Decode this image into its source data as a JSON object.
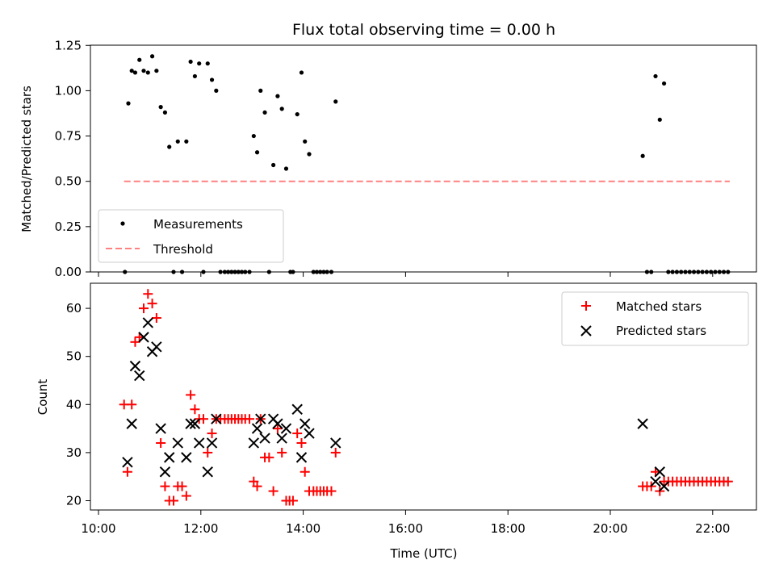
{
  "chart_data": [
    {
      "type": "scatter",
      "title": "Flux total observing time = 0.00 h",
      "xlabel": "",
      "ylabel": "Matched/Predicted stars",
      "xlim": [
        "10:00",
        "23:00"
      ],
      "ylim": [
        0,
        1.25
      ],
      "yticks": [
        "0.00",
        "0.25",
        "0.50",
        "0.75",
        "1.00",
        "1.25"
      ],
      "legend_position": "lower-left",
      "series": [
        {
          "name": "Measurements",
          "color": "#000000",
          "marker": "dot",
          "points": [
            [
              "10:31",
              0.0
            ],
            [
              "10:35",
              0.93
            ],
            [
              "10:39",
              1.11
            ],
            [
              "10:43",
              1.1
            ],
            [
              "10:48",
              1.17
            ],
            [
              "10:53",
              1.11
            ],
            [
              "10:58",
              1.1
            ],
            [
              "11:03",
              1.19
            ],
            [
              "11:08",
              1.11
            ],
            [
              "11:13",
              0.91
            ],
            [
              "11:18",
              0.88
            ],
            [
              "11:23",
              0.69
            ],
            [
              "11:28",
              0.0
            ],
            [
              "11:33",
              0.72
            ],
            [
              "11:38",
              0.0
            ],
            [
              "11:43",
              0.72
            ],
            [
              "11:48",
              1.16
            ],
            [
              "11:53",
              1.08
            ],
            [
              "11:58",
              1.15
            ],
            [
              "12:03",
              0.0
            ],
            [
              "12:08",
              1.15
            ],
            [
              "12:13",
              1.06
            ],
            [
              "12:18",
              1.0
            ],
            [
              "12:23",
              0.0
            ],
            [
              "12:28",
              0.0
            ],
            [
              "12:32",
              0.0
            ],
            [
              "12:36",
              0.0
            ],
            [
              "12:40",
              0.0
            ],
            [
              "12:44",
              0.0
            ],
            [
              "12:48",
              0.0
            ],
            [
              "12:52",
              0.0
            ],
            [
              "12:57",
              0.0
            ],
            [
              "13:02",
              0.75
            ],
            [
              "13:06",
              0.66
            ],
            [
              "13:10",
              1.0
            ],
            [
              "13:15",
              0.88
            ],
            [
              "13:20",
              0.0
            ],
            [
              "13:25",
              0.59
            ],
            [
              "13:30",
              0.97
            ],
            [
              "13:35",
              0.9
            ],
            [
              "13:40",
              0.57
            ],
            [
              "13:45",
              0.0
            ],
            [
              "13:48",
              0.0
            ],
            [
              "13:53",
              0.87
            ],
            [
              "13:58",
              1.1
            ],
            [
              "14:02",
              0.72
            ],
            [
              "14:07",
              0.65
            ],
            [
              "14:12",
              0.0
            ],
            [
              "14:16",
              0.0
            ],
            [
              "14:20",
              0.0
            ],
            [
              "14:24",
              0.0
            ],
            [
              "14:28",
              0.0
            ],
            [
              "14:33",
              0.0
            ],
            [
              "14:38",
              0.94
            ],
            [
              "20:38",
              0.64
            ],
            [
              "20:43",
              0.0
            ],
            [
              "20:48",
              0.0
            ],
            [
              "20:53",
              1.08
            ],
            [
              "20:58",
              0.84
            ],
            [
              "21:03",
              1.04
            ],
            [
              "21:08",
              0.0
            ],
            [
              "21:13",
              0.0
            ],
            [
              "21:18",
              0.0
            ],
            [
              "21:23",
              0.0
            ],
            [
              "21:28",
              0.0
            ],
            [
              "21:33",
              0.0
            ],
            [
              "21:38",
              0.0
            ],
            [
              "21:43",
              0.0
            ],
            [
              "21:48",
              0.0
            ],
            [
              "21:53",
              0.0
            ],
            [
              "21:58",
              0.0
            ],
            [
              "22:03",
              0.0
            ],
            [
              "22:08",
              0.0
            ],
            [
              "22:13",
              0.0
            ],
            [
              "22:18",
              0.0
            ]
          ]
        },
        {
          "name": "Threshold",
          "color": "#ff8080",
          "line": "dashed",
          "points": [
            [
              "10:30",
              0.5
            ],
            [
              "22:20",
              0.5
            ]
          ]
        }
      ]
    },
    {
      "type": "scatter",
      "title": "",
      "xlabel": "Time (UTC)",
      "ylabel": "Count",
      "xlim": [
        "10:00",
        "23:00"
      ],
      "ylim": [
        18,
        65
      ],
      "xticks": [
        "10:00",
        "12:00",
        "14:00",
        "16:00",
        "18:00",
        "20:00",
        "22:00"
      ],
      "yticks": [
        "20",
        "30",
        "40",
        "50",
        "60"
      ],
      "legend_position": "upper-right",
      "series": [
        {
          "name": "Matched stars",
          "color": "#ff0000",
          "marker": "plus",
          "points": [
            [
              "10:30",
              40
            ],
            [
              "10:34",
              26
            ],
            [
              "10:39",
              40
            ],
            [
              "10:43",
              53
            ],
            [
              "10:48",
              54
            ],
            [
              "10:53",
              60
            ],
            [
              "10:58",
              63
            ],
            [
              "11:03",
              61
            ],
            [
              "11:08",
              58
            ],
            [
              "11:13",
              32
            ],
            [
              "11:18",
              23
            ],
            [
              "11:23",
              20
            ],
            [
              "11:28",
              20
            ],
            [
              "11:33",
              23
            ],
            [
              "11:38",
              23
            ],
            [
              "11:43",
              21
            ],
            [
              "11:48",
              42
            ],
            [
              "11:53",
              39
            ],
            [
              "11:58",
              37
            ],
            [
              "12:03",
              37
            ],
            [
              "12:08",
              30
            ],
            [
              "12:13",
              34
            ],
            [
              "12:18",
              37
            ],
            [
              "12:23",
              37
            ],
            [
              "12:28",
              37
            ],
            [
              "12:32",
              37
            ],
            [
              "12:36",
              37
            ],
            [
              "12:40",
              37
            ],
            [
              "12:44",
              37
            ],
            [
              "12:48",
              37
            ],
            [
              "12:52",
              37
            ],
            [
              "12:57",
              37
            ],
            [
              "13:02",
              24
            ],
            [
              "13:06",
              23
            ],
            [
              "13:10",
              37
            ],
            [
              "13:15",
              29
            ],
            [
              "13:20",
              29
            ],
            [
              "13:25",
              22
            ],
            [
              "13:30",
              35
            ],
            [
              "13:35",
              30
            ],
            [
              "13:40",
              20
            ],
            [
              "13:44",
              20
            ],
            [
              "13:48",
              20
            ],
            [
              "13:53",
              34
            ],
            [
              "13:58",
              32
            ],
            [
              "14:02",
              26
            ],
            [
              "14:07",
              22
            ],
            [
              "14:12",
              22
            ],
            [
              "14:16",
              22
            ],
            [
              "14:20",
              22
            ],
            [
              "14:24",
              22
            ],
            [
              "14:28",
              22
            ],
            [
              "14:33",
              22
            ],
            [
              "14:38",
              30
            ],
            [
              "20:38",
              23
            ],
            [
              "20:43",
              23
            ],
            [
              "20:48",
              23
            ],
            [
              "20:53",
              26
            ],
            [
              "20:58",
              22
            ],
            [
              "21:03",
              24
            ],
            [
              "21:08",
              24
            ],
            [
              "21:13",
              24
            ],
            [
              "21:18",
              24
            ],
            [
              "21:23",
              24
            ],
            [
              "21:28",
              24
            ],
            [
              "21:33",
              24
            ],
            [
              "21:38",
              24
            ],
            [
              "21:43",
              24
            ],
            [
              "21:48",
              24
            ],
            [
              "21:53",
              24
            ],
            [
              "21:58",
              24
            ],
            [
              "22:03",
              24
            ],
            [
              "22:08",
              24
            ],
            [
              "22:13",
              24
            ],
            [
              "22:18",
              24
            ]
          ]
        },
        {
          "name": "Predicted stars",
          "color": "#000000",
          "marker": "x",
          "points": [
            [
              "10:34",
              28
            ],
            [
              "10:39",
              36
            ],
            [
              "10:43",
              48
            ],
            [
              "10:48",
              46
            ],
            [
              "10:53",
              54
            ],
            [
              "10:58",
              57
            ],
            [
              "11:03",
              51
            ],
            [
              "11:08",
              52
            ],
            [
              "11:13",
              35
            ],
            [
              "11:18",
              26
            ],
            [
              "11:23",
              29
            ],
            [
              "11:33",
              32
            ],
            [
              "11:43",
              29
            ],
            [
              "11:48",
              36
            ],
            [
              "11:53",
              36
            ],
            [
              "11:58",
              32
            ],
            [
              "12:08",
              26
            ],
            [
              "12:13",
              32
            ],
            [
              "12:18",
              37
            ],
            [
              "13:02",
              32
            ],
            [
              "13:06",
              35
            ],
            [
              "13:10",
              37
            ],
            [
              "13:15",
              33
            ],
            [
              "13:25",
              37
            ],
            [
              "13:30",
              36
            ],
            [
              "13:35",
              33
            ],
            [
              "13:40",
              35
            ],
            [
              "13:53",
              39
            ],
            [
              "13:58",
              29
            ],
            [
              "14:02",
              36
            ],
            [
              "14:07",
              34
            ],
            [
              "14:38",
              32
            ],
            [
              "20:38",
              36
            ],
            [
              "20:53",
              24
            ],
            [
              "20:58",
              26
            ],
            [
              "21:03",
              23
            ]
          ]
        }
      ]
    }
  ]
}
